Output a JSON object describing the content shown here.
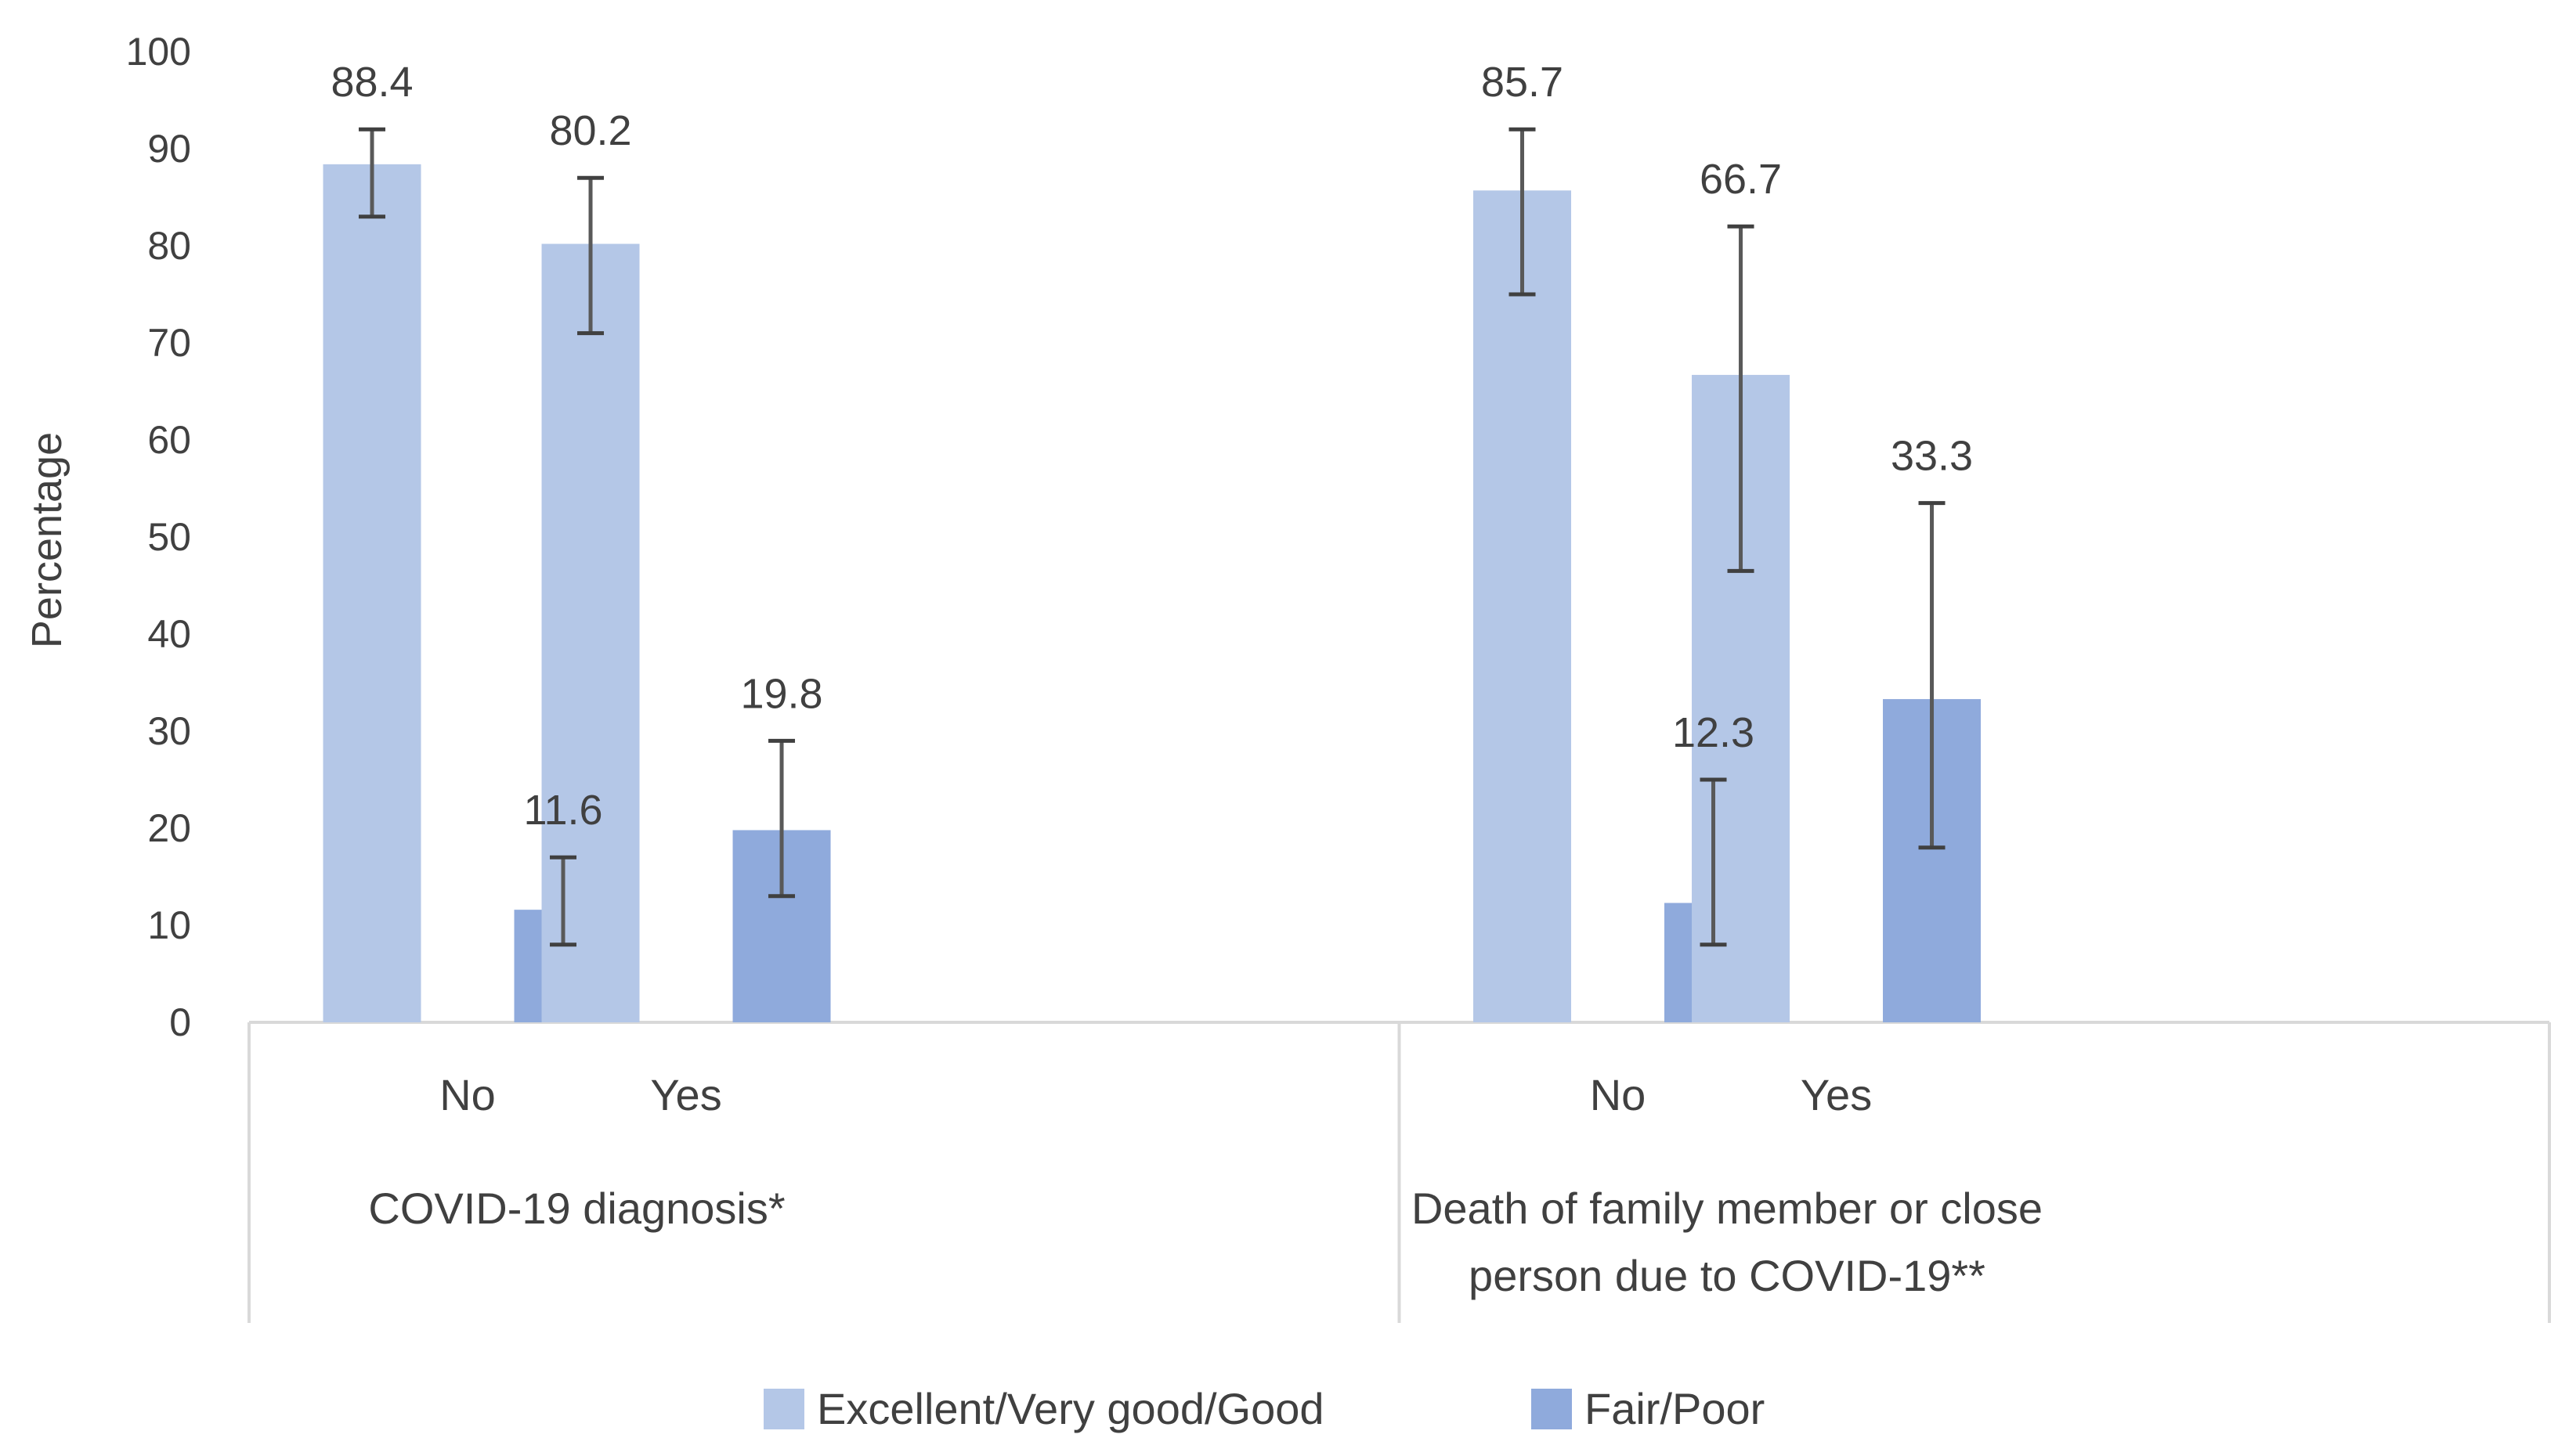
{
  "chart_data": {
    "type": "bar",
    "title": "",
    "xlabel": "",
    "ylabel": "Percentage",
    "ylim": [
      0,
      100
    ],
    "yticks": [
      0,
      10,
      20,
      30,
      40,
      50,
      60,
      70,
      80,
      90,
      100
    ],
    "groups": [
      {
        "label": "COVID-19 diagnosis*",
        "categories": [
          {
            "label": "No",
            "values": [
              88.4,
              11.6
            ],
            "errors": [
              [
                83,
                92
              ],
              [
                8,
                17
              ]
            ]
          },
          {
            "label": "Yes",
            "values": [
              80.2,
              19.8
            ],
            "errors": [
              [
                71,
                87
              ],
              [
                13,
                29
              ]
            ]
          }
        ]
      },
      {
        "label": "Death of family member or close person due to COVID-19**",
        "label_lines": [
          "Death of family member or close",
          "person due to COVID-19**"
        ],
        "categories": [
          {
            "label": "No",
            "values": [
              85.7,
              12.3
            ],
            "errors": [
              [
                75,
                92
              ],
              [
                8,
                25
              ]
            ]
          },
          {
            "label": "Yes",
            "values": [
              66.7,
              33.3
            ],
            "errors": [
              [
                46.5,
                82
              ],
              [
                18,
                53.5
              ]
            ]
          }
        ]
      }
    ],
    "series": [
      {
        "name": "Excellent/Very good/Good",
        "color": "#b4c7e7"
      },
      {
        "name": "Fair/Poor",
        "color": "#8faadc"
      }
    ],
    "legend": "bottom",
    "grid": false
  }
}
